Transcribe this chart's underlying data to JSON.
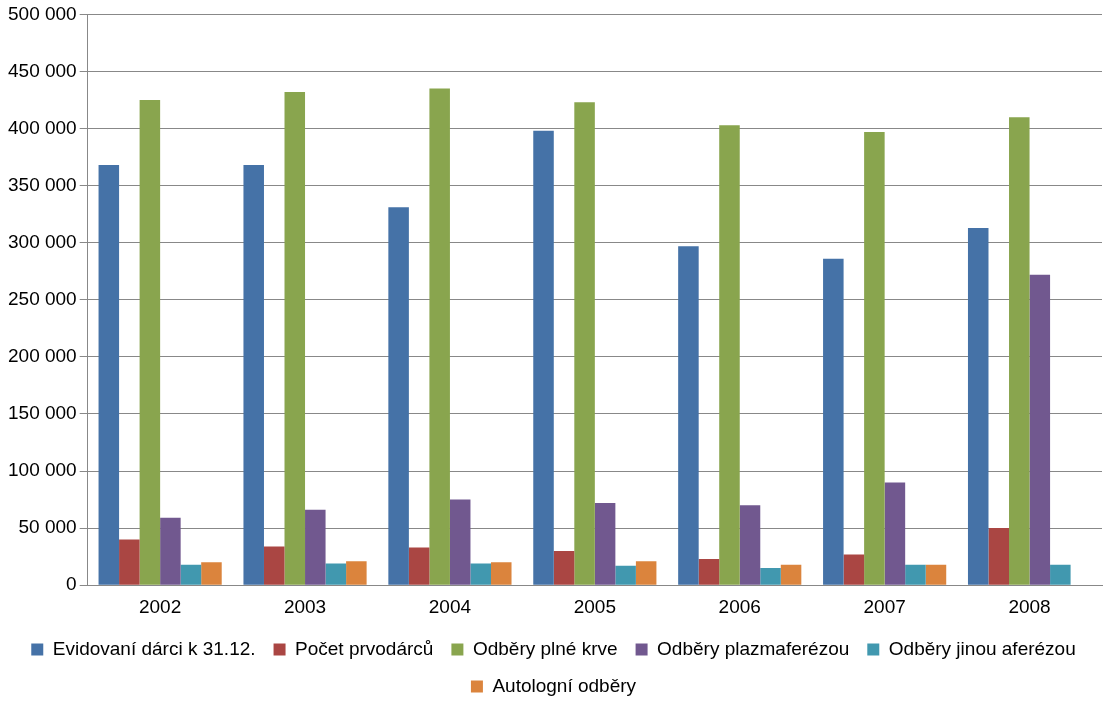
{
  "chart_data": {
    "type": "bar",
    "categories": [
      "2002",
      "2003",
      "2004",
      "2005",
      "2006",
      "2007",
      "2008"
    ],
    "series": [
      {
        "name": "Evidovaní dárci k 31.12.",
        "color": "#4572a7",
        "values": [
          368000,
          368000,
          331000,
          398000,
          297000,
          286000,
          313000
        ]
      },
      {
        "name": "Počet prvodárců",
        "color": "#aa4643",
        "values": [
          40000,
          34000,
          33000,
          30000,
          23000,
          27000,
          50000
        ]
      },
      {
        "name": "Odběry plné krve",
        "color": "#89a54e",
        "values": [
          425000,
          432000,
          435000,
          423000,
          403000,
          397000,
          410000
        ]
      },
      {
        "name": "Odběry plazmaferézou",
        "color": "#71588f",
        "values": [
          59000,
          66000,
          75000,
          72000,
          70000,
          90000,
          272000
        ]
      },
      {
        "name": "Odběry jinou aferézou",
        "color": "#4198af",
        "values": [
          18000,
          19000,
          19000,
          17000,
          15000,
          18000,
          18000
        ]
      },
      {
        "name": "Autologní odběry",
        "color": "#db843d",
        "values": [
          20000,
          21000,
          20000,
          21000,
          18000,
          18000,
          null
        ]
      }
    ],
    "ylim": [
      0,
      500000
    ],
    "yticks": [
      {
        "value": 0,
        "label": "0"
      },
      {
        "value": 50000,
        "label": "50 000"
      },
      {
        "value": 100000,
        "label": "100 000"
      },
      {
        "value": 150000,
        "label": "150 000"
      },
      {
        "value": 200000,
        "label": "200 000"
      },
      {
        "value": 250000,
        "label": "250 000"
      },
      {
        "value": 300000,
        "label": "300 000"
      },
      {
        "value": 350000,
        "label": "350 000"
      },
      {
        "value": 400000,
        "label": "400 000"
      },
      {
        "value": 450000,
        "label": "450 000"
      },
      {
        "value": 500000,
        "label": "500 000"
      }
    ],
    "grid": "y",
    "legend": "bottom"
  }
}
